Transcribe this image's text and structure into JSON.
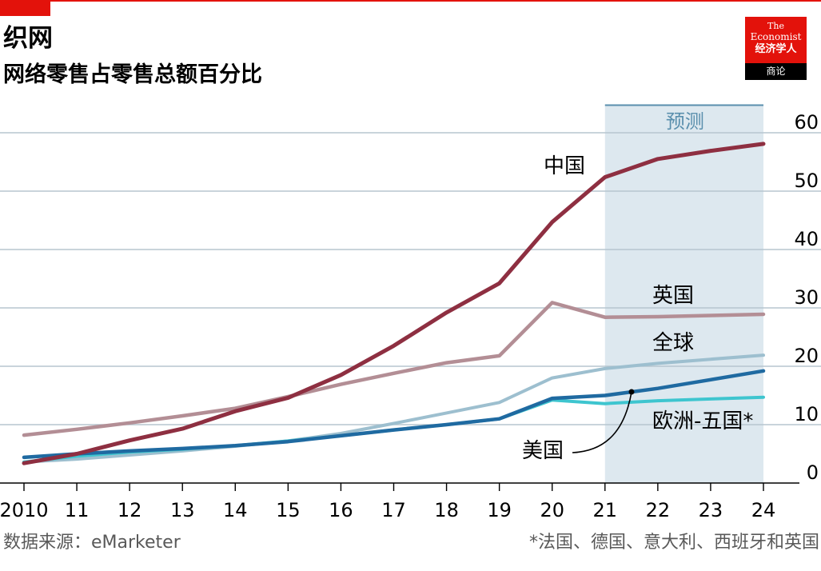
{
  "header": {
    "title": "织网",
    "subtitle": "网络零售占零售总额百分比"
  },
  "logo": {
    "the": "The",
    "name": "Economist",
    "chinese": "经济学人",
    "sub": "商论"
  },
  "footer": {
    "source": "数据来源：eMarketer",
    "note": "*法国、德国、意大利、西班牙和英国"
  },
  "colors": {
    "brand_red": "#e3120b",
    "forecast_band": "#dde8ef",
    "forecast_label": "#5a8fad"
  },
  "chart_data": {
    "type": "line",
    "title": "织网",
    "subtitle": "网络零售占零售总额百分比",
    "x": [
      2010,
      2011,
      2012,
      2013,
      2014,
      2015,
      2016,
      2017,
      2018,
      2019,
      2020,
      2021,
      2022,
      2023,
      2024
    ],
    "x_tick_labels": [
      "2010",
      "11",
      "12",
      "13",
      "14",
      "15",
      "16",
      "17",
      "18",
      "19",
      "20",
      "21",
      "22",
      "23",
      "24"
    ],
    "y_ticks": [
      0,
      10,
      20,
      30,
      40,
      50,
      60
    ],
    "ylim": [
      0,
      60
    ],
    "y_axis_side": "right",
    "grid": true,
    "forecast": {
      "label": "预测",
      "from": 2021,
      "to": 2024
    },
    "series": [
      {
        "name": "全球",
        "color": "#9dbfcf",
        "values": [
          3.6,
          4.1,
          4.8,
          5.5,
          6.3,
          7.2,
          8.5,
          10.2,
          12.0,
          13.8,
          18.0,
          19.6,
          20.5,
          21.2,
          21.9
        ]
      },
      {
        "name": "欧洲-五国*",
        "color": "#3ec5cf",
        "values": [
          3.6,
          4.6,
          5.3,
          5.8,
          6.4,
          7.2,
          8.1,
          9.1,
          10.0,
          11.0,
          14.2,
          13.6,
          14.1,
          14.4,
          14.7
        ]
      },
      {
        "name": "英国",
        "color": "#b38e95",
        "values": [
          8.2,
          9.2,
          10.3,
          11.5,
          12.8,
          14.8,
          16.9,
          18.8,
          20.6,
          21.8,
          30.9,
          28.4,
          28.5,
          28.7,
          28.9
        ]
      },
      {
        "name": "美国",
        "color": "#1f6aa1",
        "values": [
          4.4,
          5.0,
          5.5,
          5.9,
          6.4,
          7.1,
          8.1,
          9.1,
          10.0,
          11.0,
          14.5,
          15.0,
          16.2,
          17.7,
          19.2
        ]
      },
      {
        "name": "中国",
        "color": "#8e2f41",
        "values": [
          3.4,
          5.0,
          7.3,
          9.3,
          12.3,
          14.6,
          18.5,
          23.5,
          29.2,
          34.2,
          44.7,
          52.4,
          55.5,
          56.9,
          58.1
        ]
      }
    ]
  }
}
